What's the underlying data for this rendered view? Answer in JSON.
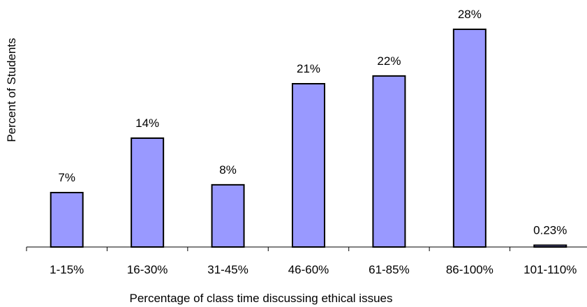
{
  "chart_data": {
    "type": "bar",
    "xlabel": "Percentage of class time discussing ethical issues",
    "ylabel": "Percent of Students",
    "categories": [
      "1-15%",
      "16-30%",
      "31-45%",
      "46-60%",
      "61-85%",
      "86-100%",
      "101-110%"
    ],
    "values": [
      7,
      14,
      8,
      21,
      22,
      28,
      0.23
    ],
    "data_labels": [
      "7%",
      "14%",
      "8%",
      "21%",
      "22%",
      "28%",
      "0.23%"
    ],
    "ylim": [
      0,
      28
    ],
    "grid": false,
    "legend": "none",
    "colors": {
      "bar_fill": "#9999FF",
      "bar_stroke": "#000000"
    }
  }
}
